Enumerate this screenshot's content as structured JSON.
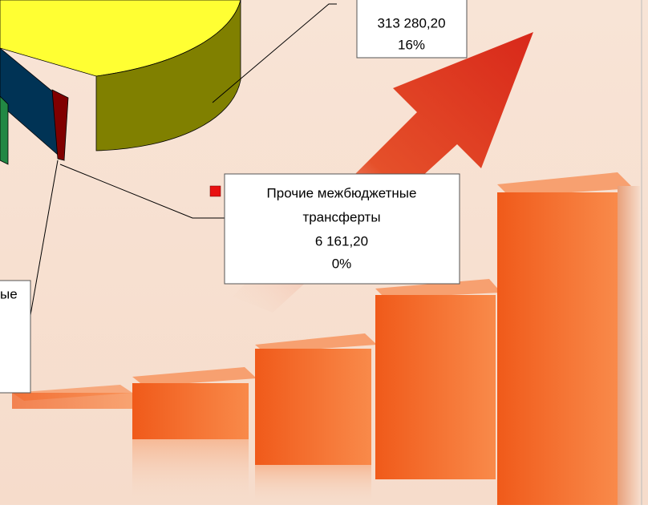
{
  "callouts": [
    {
      "lines": [
        "313 280,20",
        "16%"
      ]
    },
    {
      "lines": [
        "Прочие межбюджетные",
        "трансферты",
        "6 161,20",
        "0%"
      ]
    },
    {
      "lines": [
        "ые"
      ]
    }
  ]
}
